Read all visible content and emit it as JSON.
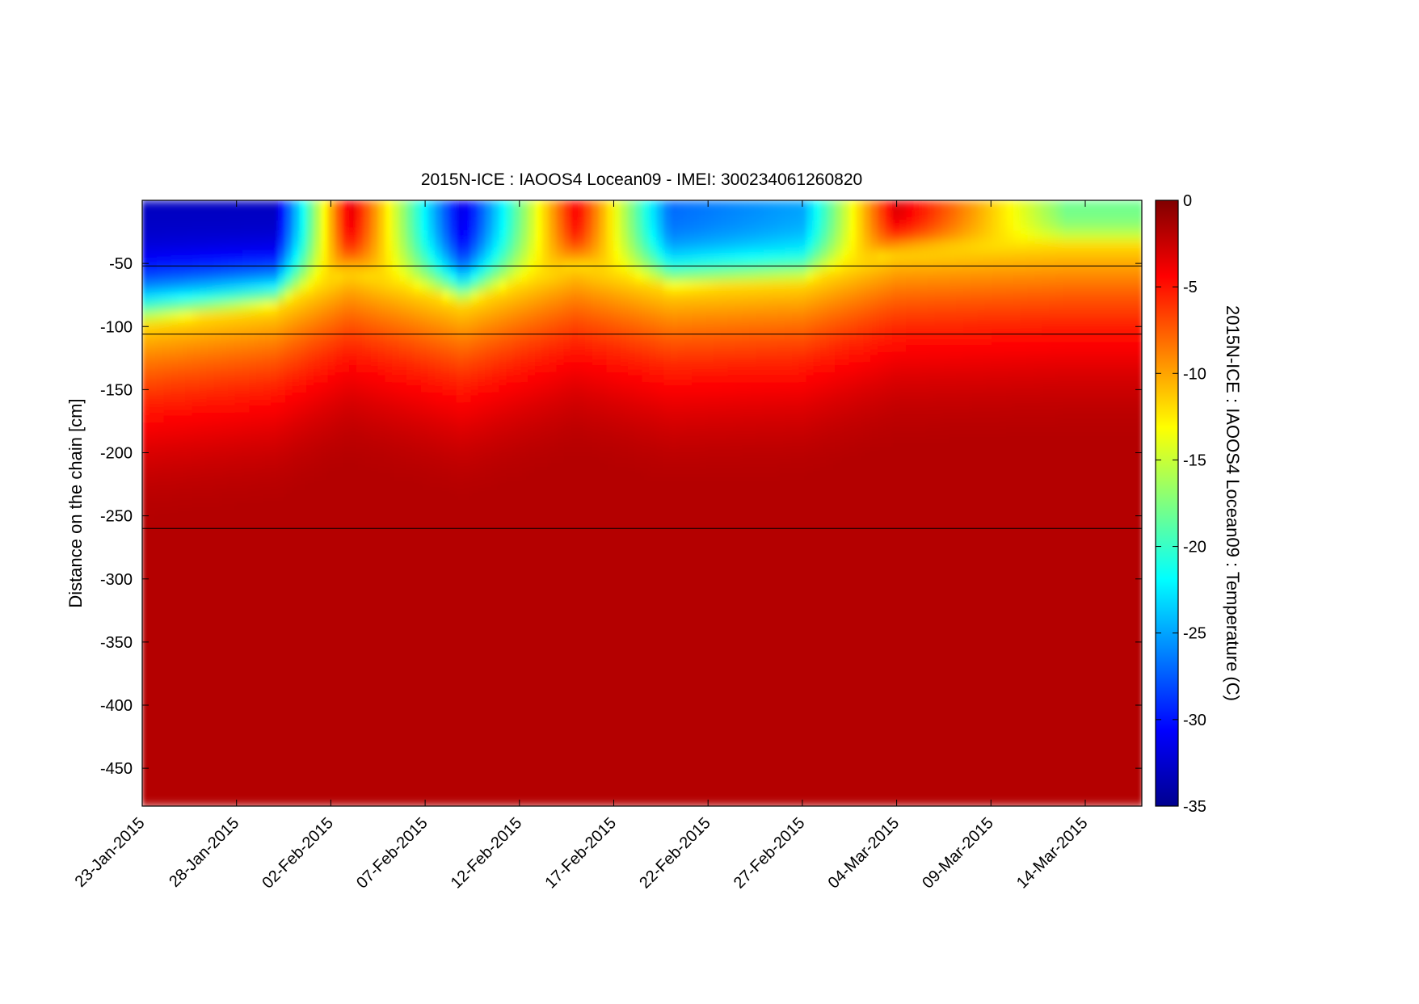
{
  "chart_data": {
    "type": "heatmap",
    "title": "2015N-ICE : IAOOS4  Locean09 - IMEI: 300234061260820",
    "xlabel": "",
    "ylabel": "Distance on the chain [cm]",
    "colorbar_label": "2015N-ICE : IAOOS4  Locean09 : Temperature (C)",
    "x_range": [
      "2015-01-23",
      "2015-03-17"
    ],
    "y_range": [
      -480,
      0
    ],
    "x_ticks": [
      "23-Jan-2015",
      "28-Jan-2015",
      "02-Feb-2015",
      "07-Feb-2015",
      "12-Feb-2015",
      "17-Feb-2015",
      "22-Feb-2015",
      "27-Feb-2015",
      "04-Mar-2015",
      "09-Mar-2015",
      "14-Mar-2015"
    ],
    "y_ticks": [
      -50,
      -100,
      -150,
      -200,
      -250,
      -300,
      -350,
      -400,
      -450
    ],
    "colorbar_range": [
      -35,
      0
    ],
    "colorbar_ticks": [
      0,
      -5,
      -10,
      -15,
      -20,
      -25,
      -30,
      -35
    ],
    "colormap": "jet",
    "horizontal_lines": [
      -52,
      -106,
      -260
    ],
    "grid": false,
    "sample_profiles": [
      {
        "x": "2015-01-23",
        "surface_temp": -33,
        "ice_base_depth": -98
      },
      {
        "x": "2015-01-30",
        "surface_temp": -33,
        "ice_base_depth": -85
      },
      {
        "x": "2015-02-03",
        "surface_temp": -3,
        "ice_base_depth": -55
      },
      {
        "x": "2015-02-09",
        "surface_temp": -32,
        "ice_base_depth": -82
      },
      {
        "x": "2015-02-15",
        "surface_temp": -4,
        "ice_base_depth": -50
      },
      {
        "x": "2015-02-20",
        "surface_temp": -27,
        "ice_base_depth": -70
      },
      {
        "x": "2015-02-27",
        "surface_temp": -25,
        "ice_base_depth": -65
      },
      {
        "x": "2015-03-04",
        "surface_temp": -3,
        "ice_base_depth": -40
      },
      {
        "x": "2015-03-13",
        "surface_temp": -18,
        "ice_base_depth": -35
      }
    ]
  }
}
